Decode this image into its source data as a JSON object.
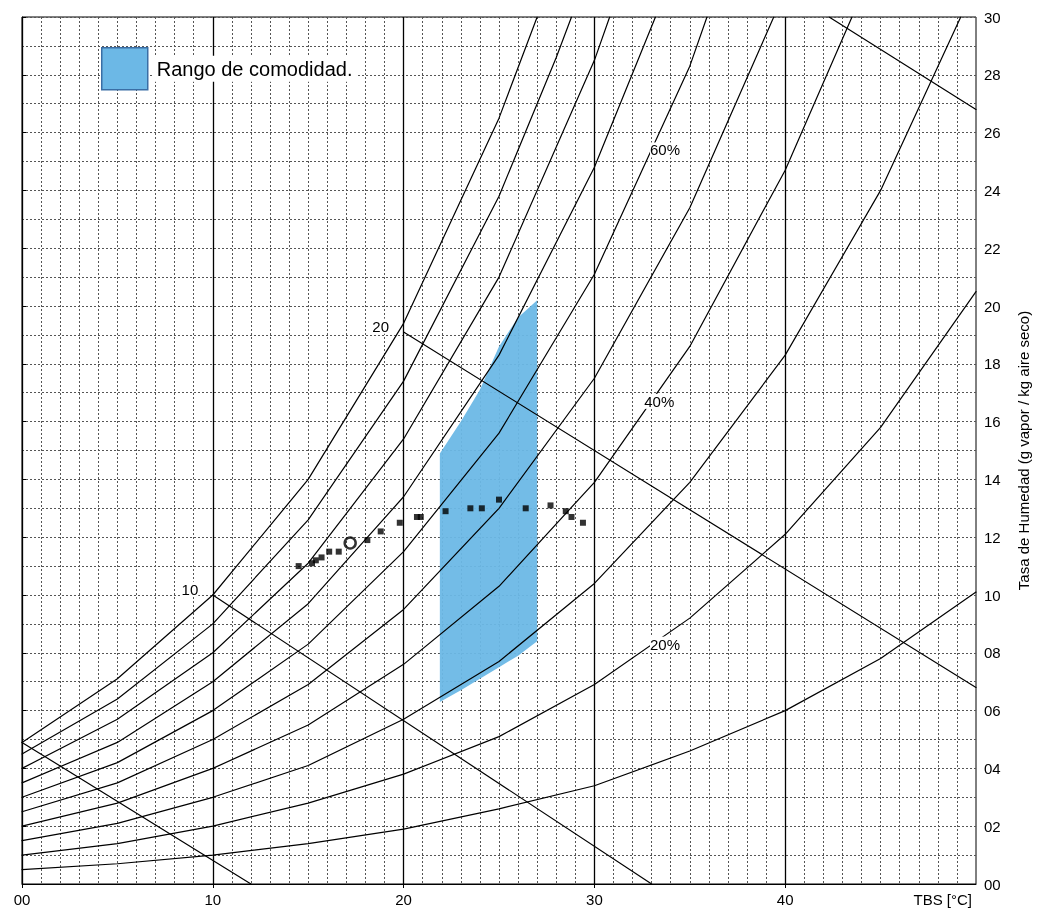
{
  "chart_data": {
    "type": "line",
    "xlabel": "TBS [°C]",
    "ylabel": "Tasa de Humedad (g vapor / kg aire seco)",
    "xlim": [
      0,
      50
    ],
    "xticks": [
      {
        "value": 0,
        "label": "00"
      },
      10,
      20,
      30,
      40
    ],
    "ylim": [
      0,
      30
    ],
    "yticks": [
      {
        "value": 0,
        "label": "00"
      },
      {
        "value": 2,
        "label": "02"
      },
      {
        "value": 4,
        "label": "04"
      },
      {
        "value": 6,
        "label": "06"
      },
      {
        "value": 8,
        "label": "08"
      },
      10,
      12,
      14,
      16,
      18,
      20,
      22,
      24,
      26,
      28,
      30
    ],
    "grid": true,
    "legend": "top left",
    "marker": "none",
    "line_style": "solid",
    "series": [
      {
        "type": "area",
        "name": "Rango de comodidad.",
        "color": "#6cb8e6",
        "x": [
          21.9,
          23,
          24,
          25,
          26,
          27,
          27,
          26,
          25,
          24,
          23,
          21.9
        ],
        "values": [
          14.9,
          16.0,
          17.1,
          18.6,
          19.6,
          20.2,
          8.4,
          7.9,
          7.5,
          7.1,
          6.7,
          6.3
        ]
      },
      {
        "color": "#000000",
        "x": [
          0,
          5,
          10,
          15,
          20,
          25,
          27
        ],
        "values": [
          4.9,
          7.1,
          10.0,
          14.0,
          19.4,
          26.5,
          30.0
        ]
      },
      {
        "color": "#000000",
        "x": [
          0,
          5,
          10,
          15,
          20,
          25,
          28,
          28.8
        ],
        "values": [
          4.5,
          6.4,
          9.0,
          12.6,
          17.4,
          23.8,
          28.6,
          30.0
        ]
      },
      {
        "color": "#000000",
        "x": [
          0,
          5,
          10,
          15,
          20,
          25,
          30,
          30.8
        ],
        "values": [
          4.0,
          5.7,
          8.0,
          11.1,
          15.4,
          21.0,
          28.5,
          30.0
        ]
      },
      {
        "color": "#000000",
        "x": [
          0,
          5,
          10,
          15,
          20,
          25,
          30,
          33.2
        ],
        "values": [
          3.5,
          4.9,
          7.0,
          9.7,
          13.4,
          18.3,
          24.8,
          30.0
        ]
      },
      {
        "color": "#000000",
        "x": [
          0,
          5,
          10,
          15,
          20,
          25,
          30,
          35,
          35.9
        ],
        "values": [
          3.0,
          4.2,
          6.0,
          8.3,
          11.5,
          15.6,
          21.1,
          28.3,
          30.0
        ]
      },
      {
        "color": "#000000",
        "x": [
          0,
          5,
          10,
          15,
          20,
          25,
          30,
          35,
          39.4
        ],
        "values": [
          2.5,
          3.5,
          5.0,
          6.9,
          9.5,
          13.0,
          17.5,
          23.4,
          30.0
        ]
      },
      {
        "color": "#000000",
        "x": [
          0,
          5,
          10,
          15,
          20,
          25,
          30,
          35,
          40,
          43.5
        ],
        "values": [
          2.0,
          2.8,
          4.0,
          5.5,
          7.6,
          10.3,
          13.9,
          18.6,
          24.7,
          30.0
        ]
      },
      {
        "color": "#000000",
        "x": [
          0,
          5,
          10,
          15,
          20,
          25,
          30,
          35,
          40,
          45,
          49.2
        ],
        "values": [
          1.5,
          2.1,
          3.0,
          4.1,
          5.7,
          7.7,
          10.4,
          13.9,
          18.3,
          24.0,
          30.0
        ]
      },
      {
        "color": "#000000",
        "x": [
          0,
          5,
          10,
          15,
          20,
          25,
          30,
          35,
          40,
          45,
          50
        ],
        "values": [
          1.0,
          1.4,
          2.0,
          2.8,
          3.8,
          5.1,
          6.9,
          9.2,
          12.1,
          15.8,
          20.5
        ]
      },
      {
        "color": "#000000",
        "x": [
          0,
          5,
          10,
          15,
          20,
          25,
          30,
          35,
          40,
          45,
          50
        ],
        "values": [
          0.5,
          0.7,
          1.0,
          1.4,
          1.9,
          2.6,
          3.4,
          4.6,
          6.0,
          7.8,
          10.1
        ]
      },
      {
        "color": "#000000",
        "x": [
          0,
          12
        ],
        "values": [
          4.9,
          0
        ]
      },
      {
        "color": "#000000",
        "x": [
          10,
          33
        ],
        "values": [
          10.0,
          0
        ]
      },
      {
        "color": "#000000",
        "x": [
          20,
          50
        ],
        "values": [
          19.1,
          6.8
        ]
      },
      {
        "color": "#000000",
        "x": [
          42.3,
          50
        ],
        "values": [
          30.0,
          26.8
        ]
      },
      {
        "type": "scatter",
        "marker": "square",
        "color": "#000000",
        "x": [
          14.5,
          15.2,
          15.4,
          15.7,
          16.1,
          16.6,
          18.1,
          18.8,
          19.8,
          20.7,
          20.9,
          22.2,
          23.5,
          24.1,
          25.0,
          26.4,
          27.7,
          28.5,
          28.8,
          29.4
        ],
        "values": [
          11.0,
          11.1,
          11.2,
          11.3,
          11.5,
          11.5,
          11.9,
          12.2,
          12.5,
          12.7,
          12.7,
          12.9,
          13.0,
          13.0,
          13.3,
          13.0,
          13.1,
          12.9,
          12.7,
          12.5
        ]
      },
      {
        "type": "scatter",
        "marker": "circle",
        "color": "#000000",
        "x": [
          17.2
        ],
        "values": [
          11.8
        ]
      }
    ],
    "annotations": [
      {
        "text": "10",
        "x": 8.8,
        "y": 10.2
      },
      {
        "text": "20",
        "x": 18.8,
        "y": 19.3
      },
      {
        "text": "60%",
        "x": 33.7,
        "y": 25.4
      },
      {
        "text": "40%",
        "x": 33.4,
        "y": 16.7
      },
      {
        "text": "20%",
        "x": 33.7,
        "y": 8.3
      }
    ]
  }
}
